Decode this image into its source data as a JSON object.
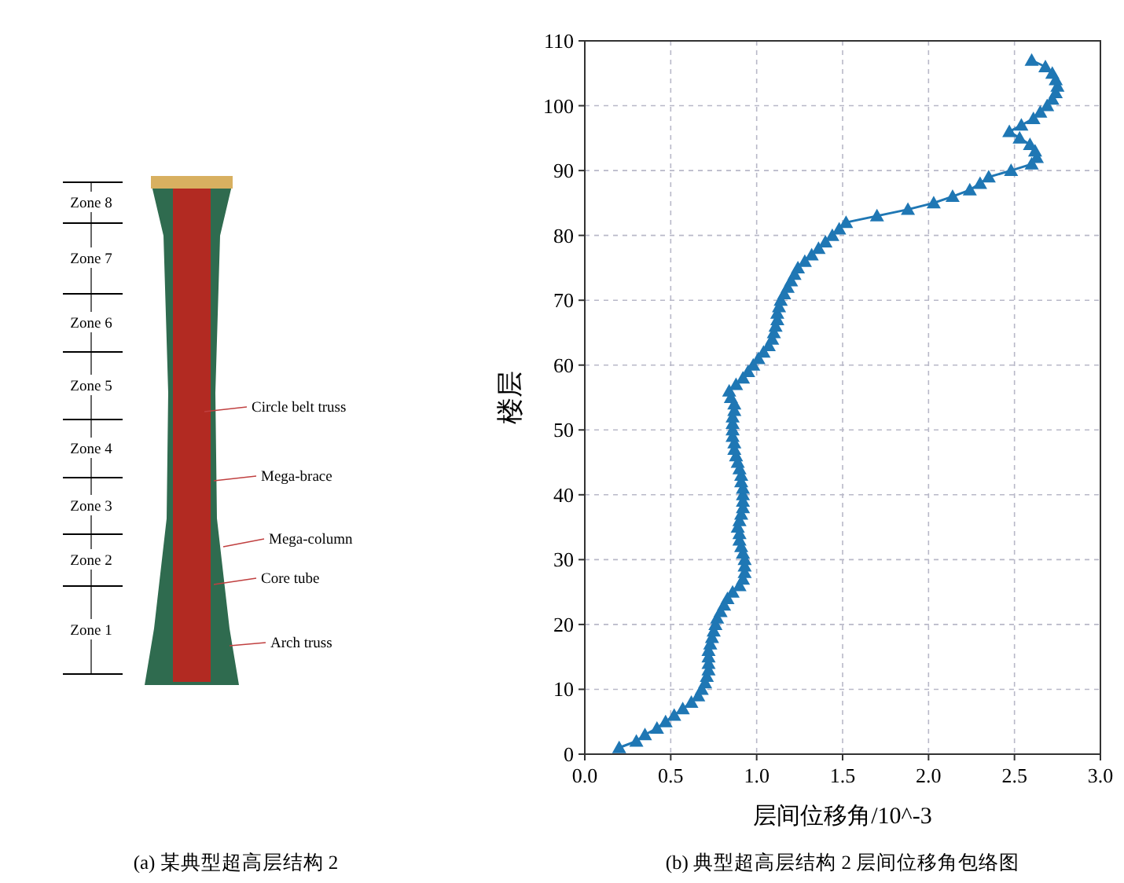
{
  "chart_data": [
    {
      "type": "other",
      "title": "(a) 某典型超高层结构 2",
      "annotations": [
        "Zone 8",
        "Zone 7",
        "Zone 6",
        "Zone 5",
        "Zone 4",
        "Zone 3",
        "Zone 2",
        "Zone 1",
        "Circle belt truss",
        "Mega-brace",
        "Mega-column",
        "Core tube",
        "Arch truss"
      ]
    },
    {
      "type": "line",
      "title": "(b) 典型超高层结构 2 层间位移角包络图",
      "xlabel": "层间位移角/10^-3",
      "ylabel": "楼层",
      "xlim": [
        0,
        3
      ],
      "ylim": [
        0,
        110
      ],
      "xticks": [
        {
          "value": 0,
          "label": "0.0"
        },
        {
          "value": 0.5,
          "label": "0.5"
        },
        {
          "value": 1,
          "label": "1.0"
        },
        {
          "value": 1.5,
          "label": "1.5"
        },
        {
          "value": 2,
          "label": "2.0"
        },
        {
          "value": 2.5,
          "label": "2.5"
        },
        {
          "value": 3,
          "label": "3.0"
        }
      ],
      "yticks": [
        0,
        10,
        20,
        30,
        40,
        50,
        60,
        70,
        80,
        90,
        100,
        110
      ],
      "grid": true,
      "marker": "triangle",
      "line_style": "solid",
      "series": [
        {
          "color": "#1f77b4",
          "x": [
            0.2,
            0.3,
            0.35,
            0.42,
            0.47,
            0.52,
            0.57,
            0.62,
            0.66,
            0.68,
            0.7,
            0.71,
            0.72,
            0.72,
            0.72,
            0.72,
            0.73,
            0.74,
            0.75,
            0.76,
            0.77,
            0.79,
            0.81,
            0.83,
            0.86,
            0.9,
            0.92,
            0.93,
            0.93,
            0.93,
            0.92,
            0.91,
            0.9,
            0.9,
            0.89,
            0.9,
            0.91,
            0.92,
            0.92,
            0.92,
            0.92,
            0.91,
            0.91,
            0.9,
            0.89,
            0.88,
            0.87,
            0.87,
            0.86,
            0.86,
            0.86,
            0.86,
            0.87,
            0.87,
            0.85,
            0.84,
            0.88,
            0.92,
            0.95,
            0.98,
            1.01,
            1.04,
            1.07,
            1.09,
            1.1,
            1.11,
            1.12,
            1.12,
            1.13,
            1.14,
            1.16,
            1.18,
            1.2,
            1.22,
            1.24,
            1.28,
            1.32,
            1.36,
            1.4,
            1.44,
            1.48,
            1.52,
            1.7,
            1.88,
            2.03,
            2.14,
            2.24,
            2.3,
            2.35,
            2.48,
            2.6,
            2.63,
            2.62,
            2.59,
            2.53,
            2.47,
            2.54,
            2.61,
            2.65,
            2.69,
            2.72,
            2.74,
            2.75,
            2.74,
            2.72,
            2.68,
            2.6
          ],
          "values": [
            1,
            2,
            3,
            4,
            5,
            6,
            7,
            8,
            9,
            10,
            11,
            12,
            13,
            14,
            15,
            16,
            17,
            18,
            19,
            20,
            21,
            22,
            23,
            24,
            25,
            26,
            27,
            28,
            29,
            30,
            31,
            32,
            33,
            34,
            35,
            36,
            37,
            38,
            39,
            40,
            41,
            42,
            43,
            44,
            45,
            46,
            47,
            48,
            49,
            50,
            51,
            52,
            53,
            54,
            55,
            56,
            57,
            58,
            59,
            60,
            61,
            62,
            63,
            64,
            65,
            66,
            67,
            68,
            69,
            70,
            71,
            72,
            73,
            74,
            75,
            76,
            77,
            78,
            79,
            80,
            81,
            82,
            83,
            84,
            85,
            86,
            87,
            88,
            89,
            90,
            91,
            92,
            93,
            94,
            95,
            96,
            97,
            98,
            99,
            100,
            101,
            102,
            103,
            104,
            105,
            106,
            107
          ]
        }
      ]
    }
  ]
}
